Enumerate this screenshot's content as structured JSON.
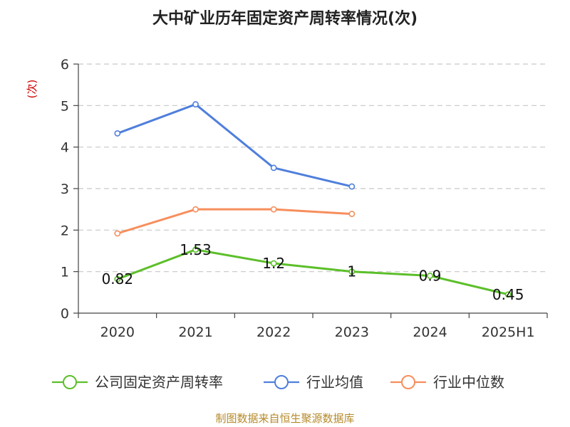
{
  "chart_data": {
    "type": "line",
    "title": "大中矿业历年固定资产周转率情况(次)",
    "ylabel": "(次)",
    "xlabel": "",
    "categories": [
      "2020",
      "2021",
      "2022",
      "2023",
      "2024",
      "2025H1"
    ],
    "ylim": [
      0,
      6
    ],
    "yticks": [
      "0",
      "1",
      "2",
      "3",
      "4",
      "5",
      "6"
    ],
    "grid": true,
    "legend_position": "bottom",
    "series": [
      {
        "name": "公司固定资产周转率",
        "color": "#5cbf2a",
        "values": [
          0.82,
          1.53,
          1.2,
          1,
          0.9,
          0.45
        ],
        "labels": [
          "0.82",
          "1.53",
          "1.2",
          "1",
          "0.9",
          "0.45"
        ]
      },
      {
        "name": "行业均值",
        "color": "#4f7fdc",
        "values": [
          4.33,
          5.03,
          3.5,
          3.05,
          null,
          null
        ]
      },
      {
        "name": "行业中位数",
        "color": "#f78e5c",
        "values": [
          1.92,
          2.5,
          2.5,
          2.39,
          null,
          null
        ]
      }
    ]
  },
  "source": "制图数据来自恒生聚源数据库"
}
